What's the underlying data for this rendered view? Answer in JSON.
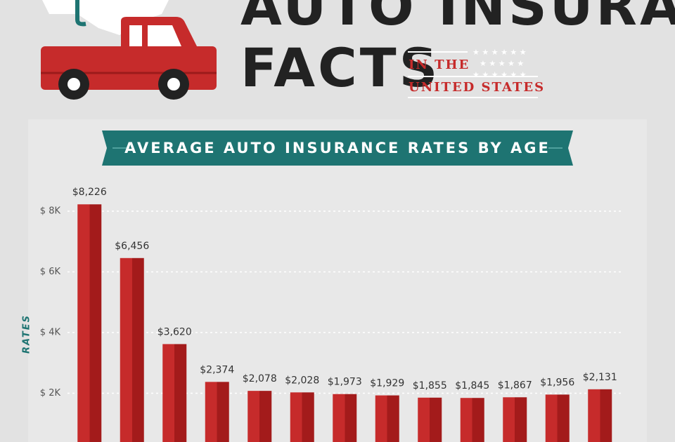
{
  "header": {
    "title_line1": "AUTO INSURANCE",
    "title_line2": "FACTS",
    "subtitle_line1": "IN THE",
    "subtitle_line2": "UNITED STATES"
  },
  "chart_data": {
    "type": "bar",
    "title": "AVERAGE AUTO INSURANCE RATES BY AGE",
    "y_label": "RATES",
    "categories": [
      null,
      null,
      null,
      null,
      null,
      null,
      null,
      null,
      null,
      null,
      null,
      null,
      null
    ],
    "values": [
      8226,
      6456,
      3620,
      2374,
      2078,
      2028,
      1973,
      1929,
      1855,
      1845,
      1867,
      1956,
      2131
    ],
    "value_labels": [
      "$8,226",
      "$6,456",
      "$3,620",
      "$2,374",
      "$2,078",
      "$2,028",
      "$1,973",
      "$1,929",
      "$1,855",
      "$1,845",
      "$1,867",
      "$1,956",
      "$2,131"
    ],
    "color": "#c62b2b",
    "shade_color": "#a31b1b",
    "ylim": [
      0,
      8500
    ],
    "yticks": [
      {
        "value": 2000,
        "label": "$ 2K"
      },
      {
        "value": 4000,
        "label": "$ 4K"
      },
      {
        "value": 6000,
        "label": "$ 6K"
      },
      {
        "value": 8000,
        "label": "$ 8K"
      }
    ],
    "grid": true
  }
}
